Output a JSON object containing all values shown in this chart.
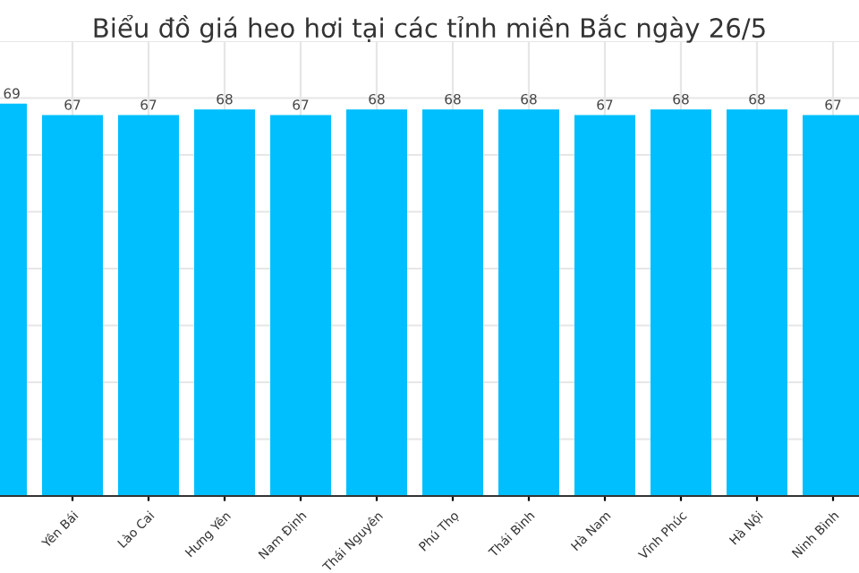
{
  "chart_data": {
    "type": "bar",
    "title": "Biểu đồ giá heo hơi tại các tỉnh miền Bắc ngày 26/5",
    "categories": [
      null,
      "Yên Bái",
      "Lào Cai",
      "Hưng Yên",
      "Nam Định",
      "Thái Nguyên",
      "Phú Thọ",
      "Thái Bình",
      "Hà Nam",
      "Vĩnh Phúc",
      "Hà Nội",
      "Ninh Bình"
    ],
    "values": [
      69,
      67,
      67,
      68,
      67,
      68,
      68,
      68,
      67,
      68,
      68,
      67
    ],
    "color": "#00bfff",
    "ylim": [
      0,
      80
    ],
    "yticks": [
      {
        "value": 0,
        "label": null
      },
      {
        "value": 10,
        "label": null
      },
      {
        "value": 20,
        "label": null
      },
      {
        "value": 30,
        "label": null
      },
      {
        "value": 40,
        "label": null
      },
      {
        "value": 50,
        "label": null
      },
      {
        "value": 60,
        "label": null
      },
      {
        "value": 70,
        "label": null
      },
      {
        "value": 80,
        "label": null
      }
    ],
    "grid": true,
    "data_labels": true,
    "tick_labels": "x"
  }
}
